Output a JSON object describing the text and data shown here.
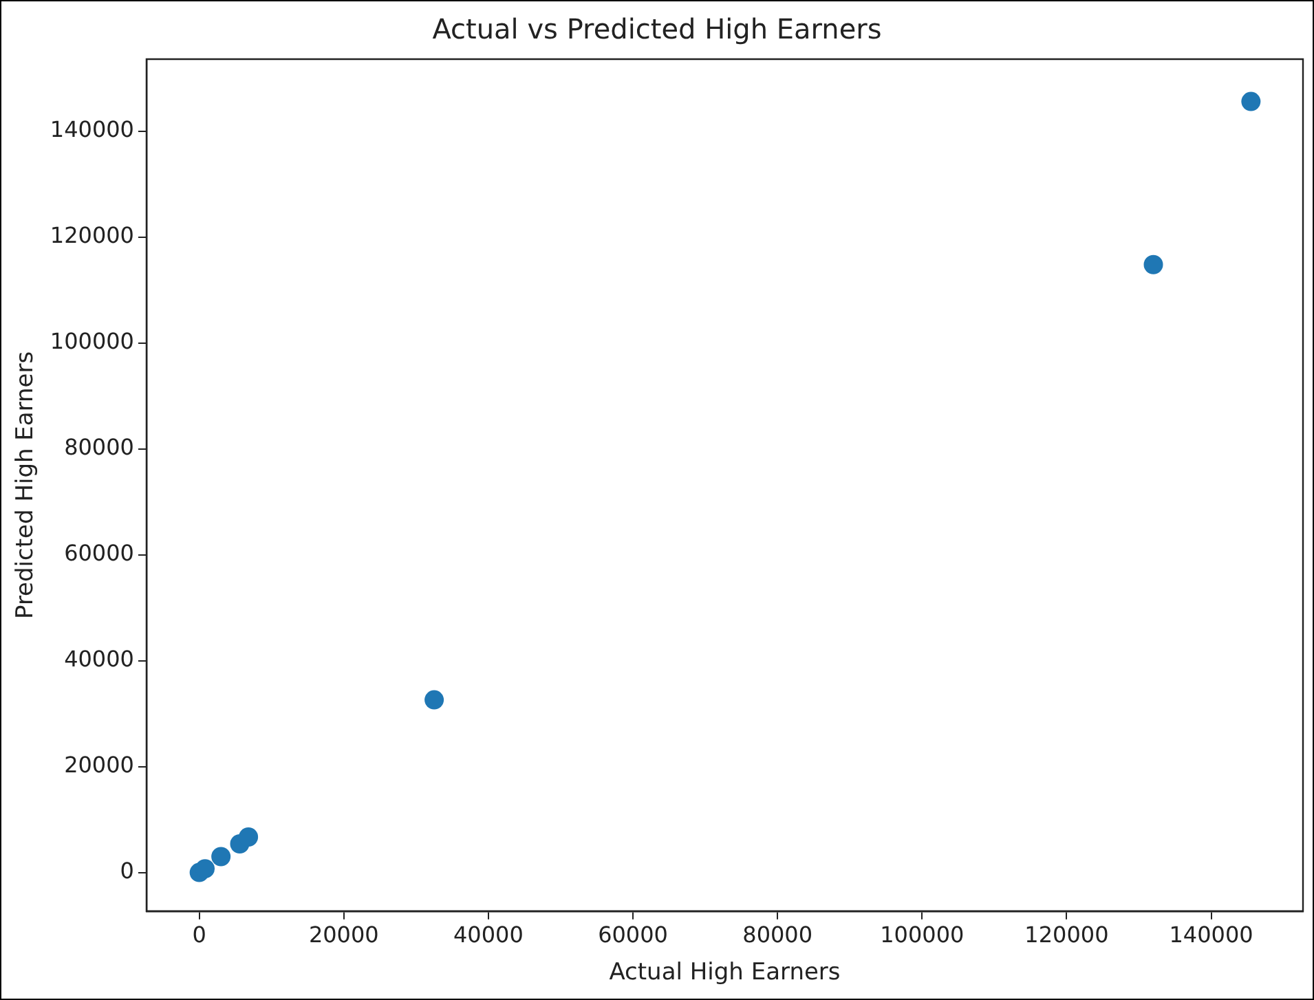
{
  "chart_data": {
    "type": "scatter",
    "title": "Actual vs Predicted High Earners",
    "xlabel": "Actual High Earners",
    "ylabel": "Predicted High Earners",
    "x": [
      0,
      800,
      3000,
      5600,
      6800,
      32500,
      132000,
      145500
    ],
    "series": [
      {
        "color": "#1f77b4",
        "values": [
          0,
          700,
          3000,
          5400,
          6700,
          32600,
          114800,
          145600
        ]
      }
    ],
    "xlim": [
      -7300,
      152700
    ],
    "ylim": [
      -7300,
      153600
    ],
    "xticks": [
      0,
      20000,
      40000,
      60000,
      80000,
      100000,
      120000,
      140000
    ],
    "yticks": [
      0,
      20000,
      40000,
      60000,
      80000,
      100000,
      120000,
      140000
    ],
    "marker": "circle",
    "grid": false,
    "legend": false
  }
}
